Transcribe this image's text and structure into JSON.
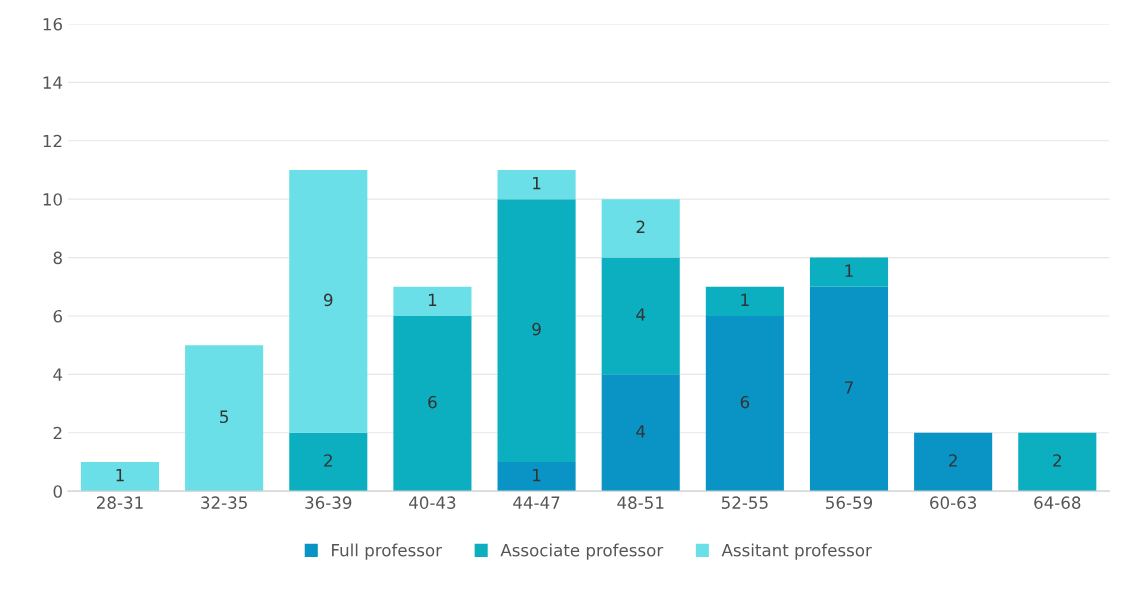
{
  "chart_data": {
    "type": "bar",
    "stacked": true,
    "categories": [
      "28-31",
      "32-35",
      "36-39",
      "40-43",
      "44-47",
      "48-51",
      "52-55",
      "56-59",
      "60-63",
      "64-68"
    ],
    "series": [
      {
        "name": "Full professor",
        "color": "#0a94c6",
        "values": [
          null,
          null,
          null,
          null,
          1,
          4,
          6,
          7,
          2,
          null
        ]
      },
      {
        "name": "Associate professor",
        "color": "#0cafc0",
        "values": [
          null,
          null,
          2,
          6,
          9,
          4,
          1,
          1,
          null,
          2
        ]
      },
      {
        "name": "Assitant professor",
        "color": "#6adfe8",
        "values": [
          1,
          5,
          9,
          1,
          1,
          2,
          null,
          null,
          null,
          null
        ]
      }
    ],
    "ylim": [
      0,
      16
    ],
    "yticks": [
      0,
      2,
      4,
      6,
      8,
      10,
      12,
      14,
      16
    ],
    "grid": "y",
    "legend": "bottom",
    "data_labels": true
  }
}
